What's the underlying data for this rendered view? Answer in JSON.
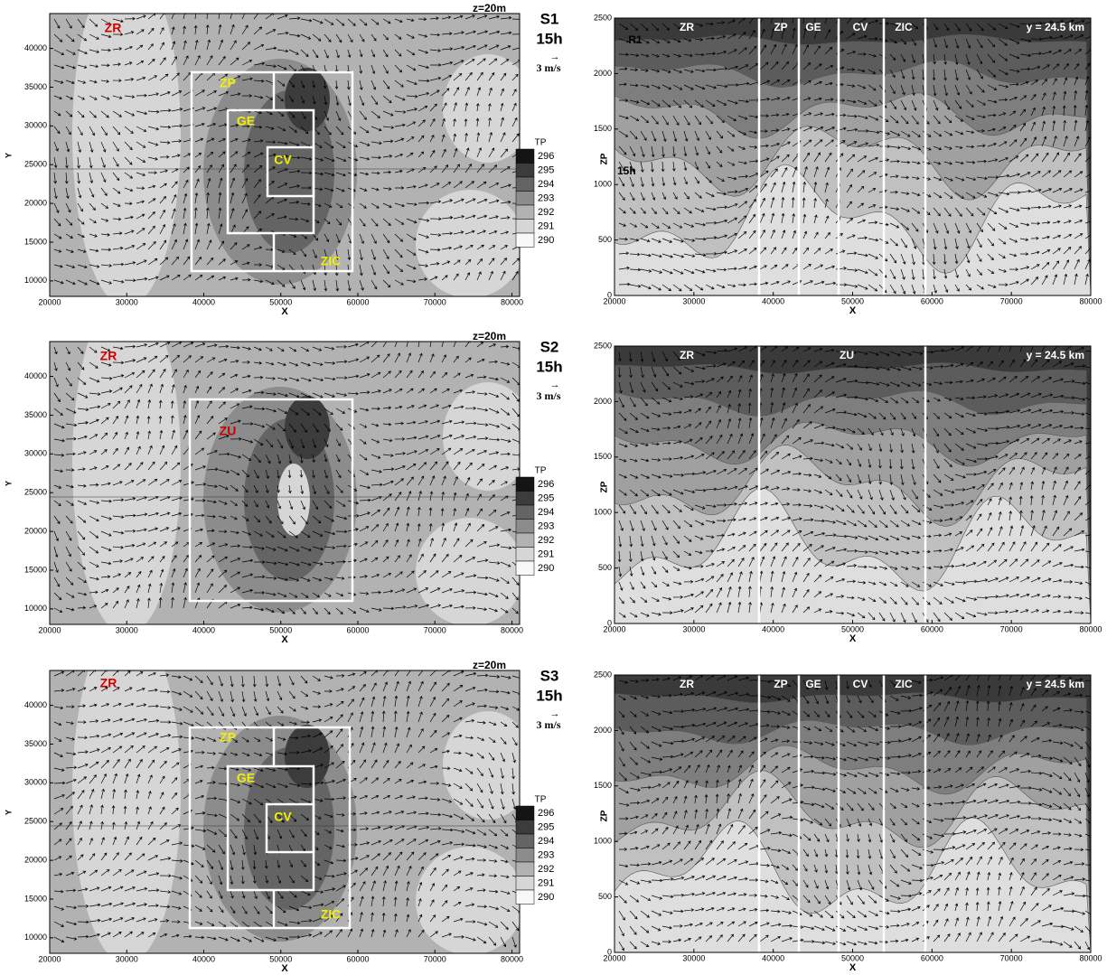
{
  "chart_data": [
    {
      "type": "contour-map",
      "title": "z=20m",
      "scenario": "S1",
      "time": "15h",
      "vector_arrow": "→",
      "vector_ref": "3 m/s",
      "zones": [
        {
          "label": "ZR",
          "color": "#d00000"
        },
        {
          "label": "ZP",
          "color": "#f0f000"
        },
        {
          "label": "GE",
          "color": "#f0f000"
        },
        {
          "label": "CV",
          "color": "#f0f000"
        },
        {
          "label": "ZIC",
          "color": "#f0f000"
        }
      ],
      "xlabel": "X",
      "ylabel": "Y",
      "xlim": [
        20000,
        81000
      ],
      "xticks": [
        20000,
        30000,
        40000,
        50000,
        60000,
        70000,
        80000
      ],
      "ylim": [
        8000,
        44500
      ],
      "yticks": [
        10000,
        15000,
        20000,
        25000,
        30000,
        35000,
        40000
      ],
      "colorbar": {
        "title": "TP",
        "ticks": [
          296,
          295,
          294,
          293,
          292,
          291,
          290
        ],
        "colors": [
          "#141414",
          "#3c3c3c",
          "#646464",
          "#8c8c8c",
          "#b2b2b2",
          "#d6d6d6",
          "#f8f8f8"
        ]
      }
    },
    {
      "type": "section",
      "title": "y = 24.5 km",
      "run": "R1",
      "time": "15h",
      "zones": [
        {
          "label": "ZR"
        },
        {
          "label": "ZP"
        },
        {
          "label": "GE"
        },
        {
          "label": "CV"
        },
        {
          "label": "ZIC"
        }
      ],
      "xlabel": "X",
      "ylabel": "ZP",
      "xlim": [
        20000,
        80000
      ],
      "xticks": [
        20000,
        30000,
        40000,
        50000,
        60000,
        70000,
        80000
      ],
      "ylim": [
        0,
        2500
      ],
      "yticks": [
        0,
        500,
        1000,
        1500,
        2000,
        2500
      ]
    },
    {
      "type": "contour-map",
      "title": "z=20m",
      "scenario": "S2",
      "time": "15h",
      "vector_arrow": "→",
      "vector_ref": "3 m/s",
      "zones": [
        {
          "label": "ZR",
          "color": "#d00000"
        },
        {
          "label": "ZU",
          "color": "#d00000"
        }
      ],
      "xlabel": "X",
      "ylabel": "Y",
      "xlim": [
        20000,
        81000
      ],
      "xticks": [
        20000,
        30000,
        40000,
        50000,
        60000,
        70000,
        80000
      ],
      "ylim": [
        8000,
        44500
      ],
      "yticks": [
        10000,
        15000,
        20000,
        25000,
        30000,
        35000,
        40000
      ],
      "colorbar": {
        "title": "TP",
        "ticks": [
          296,
          295,
          294,
          293,
          292,
          291,
          290
        ],
        "colors": [
          "#141414",
          "#3c3c3c",
          "#646464",
          "#8c8c8c",
          "#b2b2b2",
          "#d6d6d6",
          "#f8f8f8"
        ]
      }
    },
    {
      "type": "section",
      "title": "y = 24.5 km",
      "zones": [
        {
          "label": "ZR"
        },
        {
          "label": "ZU"
        }
      ],
      "xlabel": "X",
      "ylabel": "ZP",
      "xlim": [
        20000,
        80000
      ],
      "xticks": [
        20000,
        30000,
        40000,
        50000,
        60000,
        70000,
        80000
      ],
      "ylim": [
        0,
        2500
      ],
      "yticks": [
        0,
        500,
        1000,
        1500,
        2000,
        2500
      ]
    },
    {
      "type": "contour-map",
      "title": "z=20m",
      "scenario": "S3",
      "time": "15h",
      "vector_arrow": "→",
      "vector_ref": "3 m/s",
      "zones": [
        {
          "label": "ZR",
          "color": "#d00000"
        },
        {
          "label": "ZP",
          "color": "#f0f000"
        },
        {
          "label": "GE",
          "color": "#f0f000"
        },
        {
          "label": "CV",
          "color": "#f0f000"
        },
        {
          "label": "ZIC",
          "color": "#f0f000"
        }
      ],
      "xlabel": "X",
      "ylabel": "Y",
      "xlim": [
        20000,
        81000
      ],
      "xticks": [
        20000,
        30000,
        40000,
        50000,
        60000,
        70000,
        80000
      ],
      "ylim": [
        8000,
        44500
      ],
      "yticks": [
        10000,
        15000,
        20000,
        25000,
        30000,
        35000,
        40000
      ],
      "colorbar": {
        "title": "TP",
        "ticks": [
          296,
          295,
          294,
          293,
          292,
          291,
          290
        ],
        "colors": [
          "#141414",
          "#3c3c3c",
          "#646464",
          "#8c8c8c",
          "#b2b2b2",
          "#d6d6d6",
          "#f8f8f8"
        ]
      }
    },
    {
      "type": "section",
      "title": "y = 24.5 km",
      "zones": [
        {
          "label": "ZR"
        },
        {
          "label": "ZP"
        },
        {
          "label": "GE"
        },
        {
          "label": "CV"
        },
        {
          "label": "ZIC"
        }
      ],
      "xlabel": "X",
      "ylabel": "ZP",
      "xlim": [
        20000,
        80000
      ],
      "xticks": [
        20000,
        30000,
        40000,
        50000,
        60000,
        70000,
        80000
      ],
      "ylim": [
        0,
        2500
      ],
      "yticks": [
        0,
        500,
        1000,
        1500,
        2000,
        2500
      ]
    }
  ]
}
